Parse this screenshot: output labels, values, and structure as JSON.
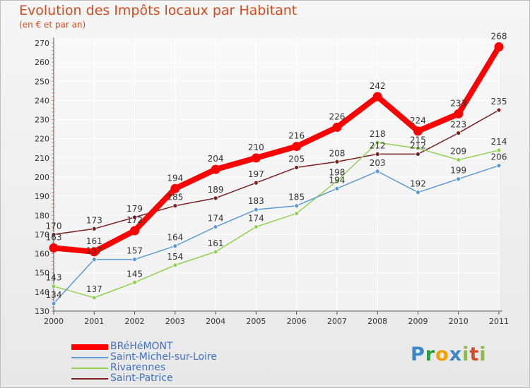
{
  "header": {
    "title": "Evolution des Impôts locaux par Habitant",
    "subtitle": "(en € et par an)"
  },
  "logo": {
    "text": "Proxiti"
  },
  "chart_data": {
    "type": "line",
    "title": "Evolution des Impôts locaux par Habitant",
    "subtitle": "(en € et par an)",
    "xlabel": "",
    "ylabel": "",
    "x": [
      "2000",
      "2001",
      "2002",
      "2003",
      "2004",
      "2005",
      "2006",
      "2007",
      "2008",
      "2009",
      "2010",
      "2011"
    ],
    "ylim": [
      130,
      270
    ],
    "yticks": [
      130,
      140,
      150,
      160,
      170,
      180,
      190,
      200,
      210,
      220,
      230,
      240,
      250,
      260,
      270
    ],
    "grid": true,
    "legend_position": "bottom-left",
    "series": [
      {
        "name": "Saint-Patrice",
        "color": "#7a1f1f",
        "values": [
          170,
          173,
          179,
          185,
          189,
          197,
          205,
          208,
          212,
          212,
          223,
          235
        ],
        "labels": [
          "170",
          "173",
          "179",
          "185",
          "189",
          "197",
          "205",
          "208",
          "212",
          "212",
          "223",
          "235"
        ]
      },
      {
        "name": "Rivarennes",
        "color": "#92d050",
        "values": [
          143,
          137,
          145,
          154,
          161,
          174,
          181,
          198,
          218,
          215,
          209,
          214
        ],
        "labels": [
          "143",
          "137",
          "145",
          "154",
          "161",
          "174",
          "",
          "198",
          "218",
          "215",
          "209",
          "214"
        ]
      },
      {
        "name": "Saint-Michel-sur-Loire",
        "color": "#5b9bd5",
        "values": [
          134,
          157,
          157,
          164,
          174,
          183,
          185,
          194,
          203,
          192,
          199,
          206
        ],
        "labels": [
          "134",
          "157",
          "157",
          "164",
          "174",
          "183",
          "185",
          "194",
          "203",
          "192",
          "199",
          "206"
        ]
      },
      {
        "name": "BRéHéMONT",
        "color": "#ff0000",
        "values": [
          163,
          161,
          172,
          194,
          204,
          210,
          216,
          226,
          242,
          224,
          233,
          268
        ],
        "labels": [
          "163",
          "161",
          "172",
          "194",
          "204",
          "210",
          "216",
          "226",
          "242",
          "224",
          "233",
          "268"
        ]
      }
    ],
    "legend": [
      "BRéHéMONT",
      "Saint-Michel-sur-Loire",
      "Rivarennes",
      "Saint-Patrice"
    ]
  }
}
